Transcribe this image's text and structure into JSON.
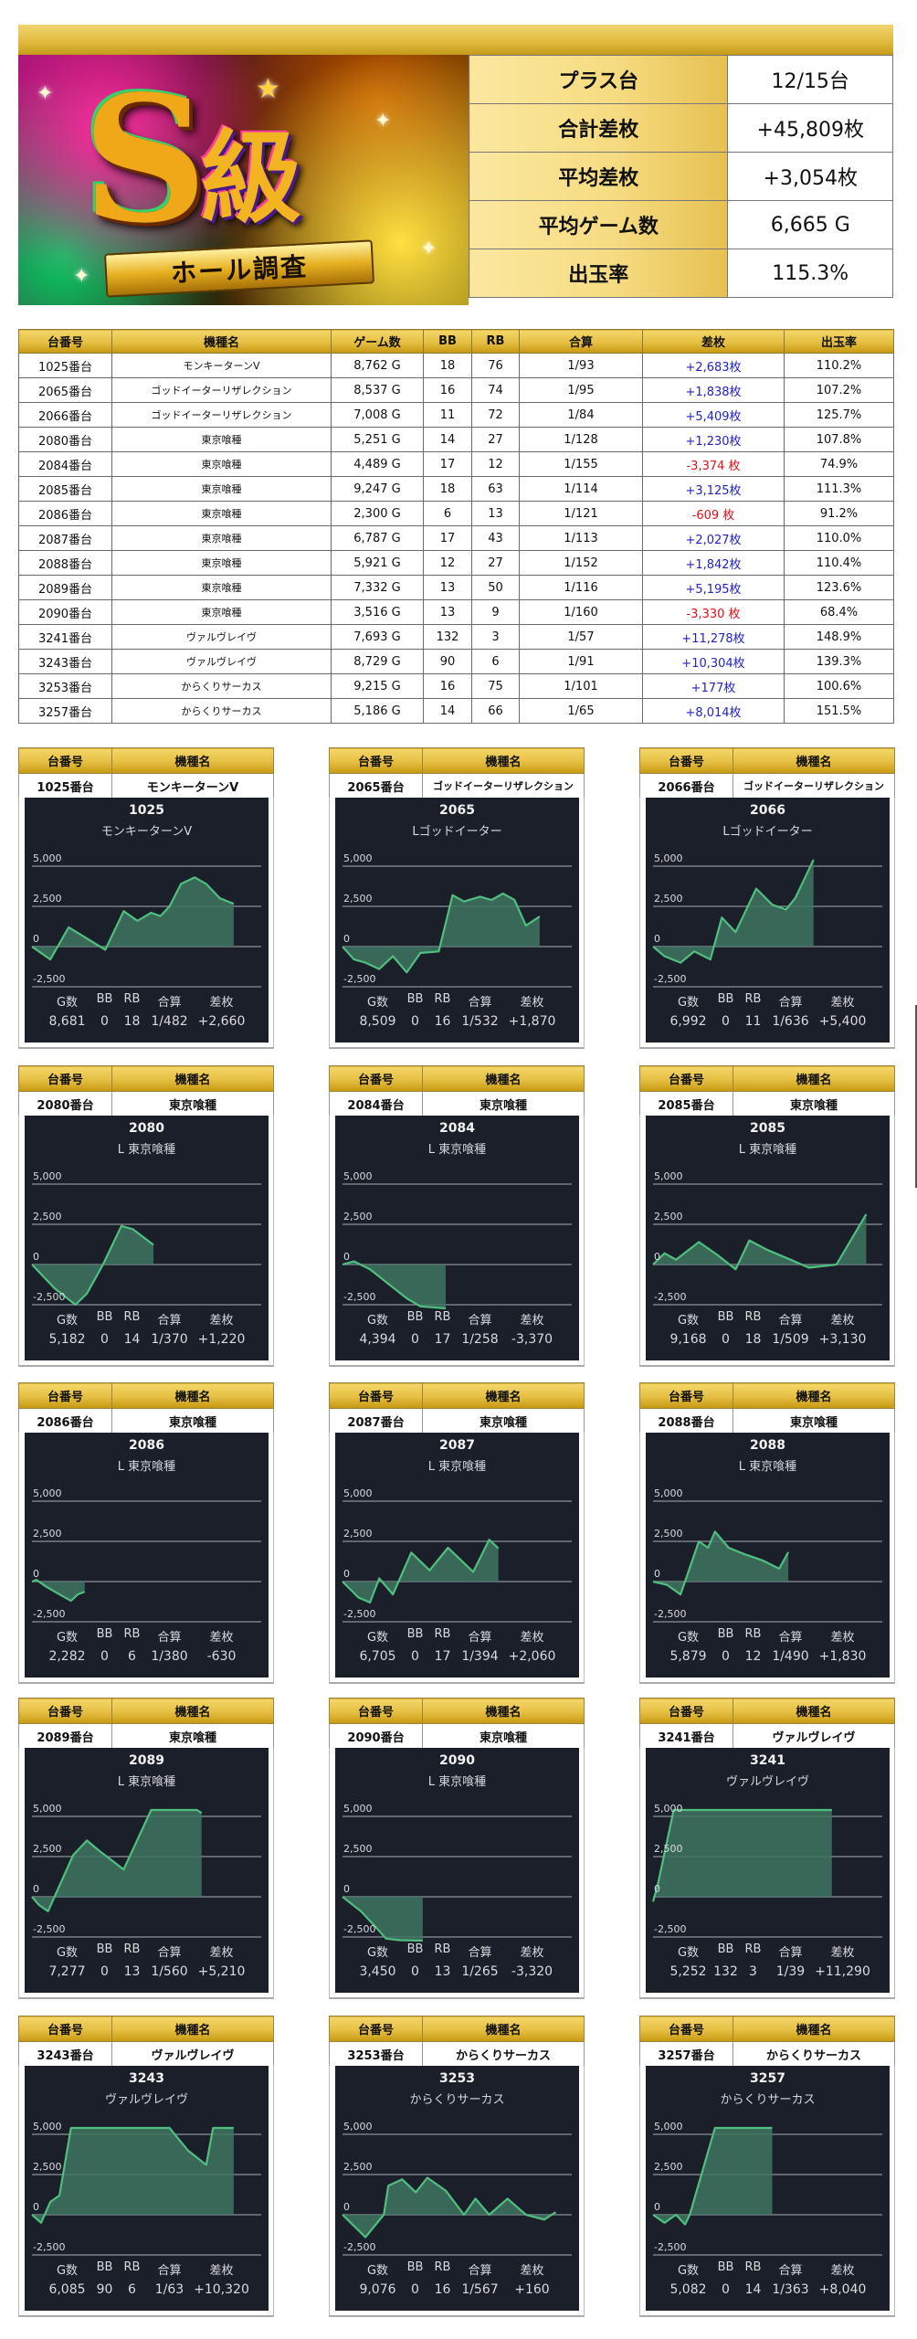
{
  "banner": {
    "title_main": "S級",
    "title_sub": "ホール調査",
    "summary": [
      {
        "label": "プラス台",
        "value": "12/15台"
      },
      {
        "label": "合計差枚",
        "value": "+45,809枚"
      },
      {
        "label": "平均差枚",
        "value": "+3,054枚"
      },
      {
        "label": "平均ゲーム数",
        "value": "6,665 G"
      },
      {
        "label": "出玉率",
        "value": "115.3%"
      }
    ]
  },
  "table": {
    "headers": [
      "台番号",
      "機種名",
      "ゲーム数",
      "BB",
      "RB",
      "合算",
      "差枚",
      "出玉率"
    ],
    "rows": [
      [
        "1025番台",
        "モンキーターンV",
        "8,762 G",
        "18",
        "76",
        "1/93",
        "+2,683枚",
        "110.2%"
      ],
      [
        "2065番台",
        "ゴッドイーターリザレクション",
        "8,537 G",
        "16",
        "74",
        "1/95",
        "+1,838枚",
        "107.2%"
      ],
      [
        "2066番台",
        "ゴッドイーターリザレクション",
        "7,008 G",
        "11",
        "72",
        "1/84",
        "+5,409枚",
        "125.7%"
      ],
      [
        "2080番台",
        "東京喰種",
        "5,251 G",
        "14",
        "27",
        "1/128",
        "+1,230枚",
        "107.8%"
      ],
      [
        "2084番台",
        "東京喰種",
        "4,489 G",
        "17",
        "12",
        "1/155",
        "-3,374 枚",
        "74.9%"
      ],
      [
        "2085番台",
        "東京喰種",
        "9,247 G",
        "18",
        "63",
        "1/114",
        "+3,125枚",
        "111.3%"
      ],
      [
        "2086番台",
        "東京喰種",
        "2,300 G",
        "6",
        "13",
        "1/121",
        "-609 枚",
        "91.2%"
      ],
      [
        "2087番台",
        "東京喰種",
        "6,787 G",
        "17",
        "43",
        "1/113",
        "+2,027枚",
        "110.0%"
      ],
      [
        "2088番台",
        "東京喰種",
        "5,921 G",
        "12",
        "27",
        "1/152",
        "+1,842枚",
        "110.4%"
      ],
      [
        "2089番台",
        "東京喰種",
        "7,332 G",
        "13",
        "50",
        "1/116",
        "+5,195枚",
        "123.6%"
      ],
      [
        "2090番台",
        "東京喰種",
        "3,516 G",
        "13",
        "9",
        "1/160",
        "-3,330 枚",
        "68.4%"
      ],
      [
        "3241番台",
        "ヴァルヴレイヴ",
        "7,693 G",
        "132",
        "3",
        "1/57",
        "+11,278枚",
        "148.9%"
      ],
      [
        "3243番台",
        "ヴァルヴレイヴ",
        "8,729 G",
        "90",
        "6",
        "1/91",
        "+10,304枚",
        "139.3%"
      ],
      [
        "3253番台",
        "からくりサーカス",
        "9,215 G",
        "16",
        "75",
        "1/101",
        "+177枚",
        "100.6%"
      ],
      [
        "3257番台",
        "からくりサーカス",
        "5,186 G",
        "14",
        "66",
        "1/65",
        "+8,014枚",
        "151.5%"
      ]
    ],
    "colors": {
      "plus": "#2222cc",
      "minus": "#e0101a"
    }
  },
  "card_labels": {
    "unit_header": "台番号",
    "model_header": "機種名",
    "stat_headers": [
      "G数",
      "BB",
      "RB",
      "合算",
      "差枚"
    ]
  },
  "chart_axis": {
    "ticks": [
      "5,000",
      "2,500",
      "0",
      "-2,500"
    ],
    "ymin": -2500,
    "ymax": 5000
  },
  "colors": {
    "panel_bg": "#1b1f2a",
    "line": "#4fbf80",
    "fill": "#3f7560",
    "grid": "#8d9096",
    "gold": "#e5bf42"
  },
  "chart_data": [
    {
      "type": "area",
      "title": "1025",
      "subtitle": "モンキーターンV",
      "unit": "1025番台",
      "model": "モンキーターンV",
      "stats": [
        "8,681",
        "0",
        "18",
        "1/482",
        "+2,660"
      ],
      "ylim": [
        -2500,
        5000
      ],
      "yticks": [
        5000,
        2500,
        0,
        -2500
      ],
      "xmax_frac": 0.88,
      "points": [
        [
          0,
          0
        ],
        [
          0.03,
          -300
        ],
        [
          0.08,
          -800
        ],
        [
          0.16,
          1200
        ],
        [
          0.24,
          500
        ],
        [
          0.32,
          -200
        ],
        [
          0.4,
          2200
        ],
        [
          0.46,
          1600
        ],
        [
          0.52,
          2100
        ],
        [
          0.56,
          1900
        ],
        [
          0.6,
          2500
        ],
        [
          0.65,
          3900
        ],
        [
          0.71,
          4300
        ],
        [
          0.76,
          3900
        ],
        [
          0.82,
          3000
        ],
        [
          0.88,
          2660
        ]
      ]
    },
    {
      "type": "area",
      "title": "2065",
      "subtitle": "Lゴッドイーター",
      "unit": "2065番台",
      "model": "ゴッドイーターリザレクション",
      "stats": [
        "8,509",
        "0",
        "16",
        "1/532",
        "+1,870"
      ],
      "ylim": [
        -2500,
        5000
      ],
      "yticks": [
        5000,
        2500,
        0,
        -2500
      ],
      "xmax_frac": 0.86,
      "points": [
        [
          0,
          0
        ],
        [
          0.05,
          -800
        ],
        [
          0.1,
          -1000
        ],
        [
          0.16,
          -1400
        ],
        [
          0.22,
          -600
        ],
        [
          0.28,
          -1600
        ],
        [
          0.34,
          -400
        ],
        [
          0.42,
          -300
        ],
        [
          0.48,
          3200
        ],
        [
          0.53,
          2800
        ],
        [
          0.6,
          3100
        ],
        [
          0.65,
          2900
        ],
        [
          0.7,
          3300
        ],
        [
          0.75,
          2900
        ],
        [
          0.8,
          1300
        ],
        [
          0.86,
          1870
        ]
      ]
    },
    {
      "type": "area",
      "title": "2066",
      "subtitle": "Lゴッドイーター",
      "unit": "2066番台",
      "model": "ゴッドイーターリザレクション",
      "stats": [
        "6,992",
        "0",
        "11",
        "1/636",
        "+5,400"
      ],
      "ylim": [
        -2500,
        5000
      ],
      "yticks": [
        5000,
        2500,
        0,
        -2500
      ],
      "xmax_frac": 0.7,
      "points": [
        [
          0,
          0
        ],
        [
          0.05,
          -600
        ],
        [
          0.12,
          -1000
        ],
        [
          0.18,
          -300
        ],
        [
          0.25,
          -800
        ],
        [
          0.3,
          1800
        ],
        [
          0.36,
          900
        ],
        [
          0.45,
          3600
        ],
        [
          0.52,
          2600
        ],
        [
          0.58,
          2300
        ],
        [
          0.62,
          3000
        ],
        [
          0.7,
          5400
        ]
      ]
    },
    {
      "type": "area",
      "title": "2080",
      "subtitle": "L 東京喰種",
      "unit": "2080番台",
      "model": "東京喰種",
      "stats": [
        "5,182",
        "0",
        "14",
        "1/370",
        "+1,220"
      ],
      "ylim": [
        -2500,
        5000
      ],
      "yticks": [
        5000,
        2500,
        0,
        -2500
      ],
      "xmax_frac": 0.53,
      "points": [
        [
          0,
          0
        ],
        [
          0.1,
          -1500
        ],
        [
          0.19,
          -2500
        ],
        [
          0.24,
          -1800
        ],
        [
          0.31,
          0
        ],
        [
          0.39,
          2400
        ],
        [
          0.44,
          2200
        ],
        [
          0.53,
          1220
        ]
      ]
    },
    {
      "type": "area",
      "title": "2084",
      "subtitle": "L 東京喰種",
      "unit": "2084番台",
      "model": "東京喰種",
      "stats": [
        "4,394",
        "0",
        "17",
        "1/258",
        "-3,370"
      ],
      "ylim": [
        -2500,
        5000
      ],
      "yticks": [
        5000,
        2500,
        0,
        -2500
      ],
      "xmax_frac": 0.45,
      "points": [
        [
          0,
          0
        ],
        [
          0.05,
          200
        ],
        [
          0.12,
          -300
        ],
        [
          0.2,
          -1200
        ],
        [
          0.28,
          -2100
        ],
        [
          0.34,
          -2600
        ],
        [
          0.45,
          -3370
        ]
      ]
    },
    {
      "type": "area",
      "title": "2085",
      "subtitle": "L 東京喰種",
      "unit": "2085番台",
      "model": "東京喰種",
      "stats": [
        "9,168",
        "0",
        "18",
        "1/509",
        "+3,130"
      ],
      "ylim": [
        -2500,
        5000
      ],
      "yticks": [
        5000,
        2500,
        0,
        -2500
      ],
      "xmax_frac": 0.93,
      "points": [
        [
          0,
          0
        ],
        [
          0.05,
          700
        ],
        [
          0.1,
          300
        ],
        [
          0.2,
          1400
        ],
        [
          0.28,
          600
        ],
        [
          0.36,
          -300
        ],
        [
          0.42,
          1500
        ],
        [
          0.5,
          900
        ],
        [
          0.6,
          300
        ],
        [
          0.68,
          -200
        ],
        [
          0.8,
          0
        ],
        [
          0.93,
          3130
        ]
      ]
    },
    {
      "type": "area",
      "title": "2086",
      "subtitle": "L 東京喰種",
      "unit": "2086番台",
      "model": "東京喰種",
      "stats": [
        "2,282",
        "0",
        "6",
        "1/380",
        "-630"
      ],
      "ylim": [
        -2500,
        5000
      ],
      "yticks": [
        5000,
        2500,
        0,
        -2500
      ],
      "xmax_frac": 0.23,
      "points": [
        [
          0,
          0
        ],
        [
          0.02,
          100
        ],
        [
          0.06,
          -300
        ],
        [
          0.12,
          -800
        ],
        [
          0.17,
          -1200
        ],
        [
          0.2,
          -800
        ],
        [
          0.23,
          -630
        ]
      ]
    },
    {
      "type": "area",
      "title": "2087",
      "subtitle": "L 東京喰種",
      "unit": "2087番台",
      "model": "東京喰種",
      "stats": [
        "6,705",
        "0",
        "17",
        "1/394",
        "+2,060"
      ],
      "ylim": [
        -2500,
        5000
      ],
      "yticks": [
        5000,
        2500,
        0,
        -2500
      ],
      "xmax_frac": 0.68,
      "points": [
        [
          0,
          0
        ],
        [
          0.07,
          -1000
        ],
        [
          0.12,
          -1300
        ],
        [
          0.16,
          200
        ],
        [
          0.22,
          -800
        ],
        [
          0.3,
          1800
        ],
        [
          0.38,
          700
        ],
        [
          0.46,
          2100
        ],
        [
          0.57,
          600
        ],
        [
          0.64,
          2600
        ],
        [
          0.68,
          2060
        ]
      ]
    },
    {
      "type": "area",
      "title": "2088",
      "subtitle": "L 東京喰種",
      "unit": "2088番台",
      "model": "東京喰種",
      "stats": [
        "5,879",
        "0",
        "12",
        "1/490",
        "+1,830"
      ],
      "ylim": [
        -2500,
        5000
      ],
      "yticks": [
        5000,
        2500,
        0,
        -2500
      ],
      "xmax_frac": 0.59,
      "points": [
        [
          0,
          0
        ],
        [
          0.06,
          -200
        ],
        [
          0.12,
          -800
        ],
        [
          0.2,
          2500
        ],
        [
          0.24,
          2100
        ],
        [
          0.27,
          3100
        ],
        [
          0.33,
          2100
        ],
        [
          0.4,
          1700
        ],
        [
          0.48,
          1300
        ],
        [
          0.55,
          800
        ],
        [
          0.59,
          1830
        ]
      ]
    },
    {
      "type": "area",
      "title": "2089",
      "subtitle": "L 東京喰種",
      "unit": "2089番台",
      "model": "東京喰種",
      "stats": [
        "7,277",
        "0",
        "13",
        "1/560",
        "+5,210"
      ],
      "ylim": [
        -2500,
        5000
      ],
      "yticks": [
        5000,
        2500,
        0,
        -2500
      ],
      "xmax_frac": 0.74,
      "points": [
        [
          0,
          0
        ],
        [
          0.03,
          -500
        ],
        [
          0.07,
          -900
        ],
        [
          0.18,
          2600
        ],
        [
          0.24,
          3500
        ],
        [
          0.29,
          2900
        ],
        [
          0.4,
          1700
        ],
        [
          0.52,
          5400
        ],
        [
          0.72,
          5400
        ],
        [
          0.74,
          5210
        ]
      ]
    },
    {
      "type": "area",
      "title": "2090",
      "subtitle": "L 東京喰種",
      "unit": "2090番台",
      "model": "東京喰種",
      "stats": [
        "3,450",
        "0",
        "13",
        "1/265",
        "-3,320"
      ],
      "ylim": [
        -2500,
        5000
      ],
      "yticks": [
        5000,
        2500,
        0,
        -2500
      ],
      "xmax_frac": 0.35,
      "points": [
        [
          0,
          0
        ],
        [
          0.08,
          -900
        ],
        [
          0.14,
          -1800
        ],
        [
          0.19,
          -2600
        ],
        [
          0.25,
          -2700
        ],
        [
          0.35,
          -3320
        ]
      ]
    },
    {
      "type": "area",
      "title": "3241",
      "subtitle": "ヴァルヴレイヴ",
      "unit": "3241番台",
      "model": "ヴァルヴレイヴ",
      "stats": [
        "5,252",
        "132",
        "3",
        "1/39",
        "+11,290"
      ],
      "ylim": [
        -2500,
        5000
      ],
      "yticks": [
        5000,
        2500,
        0,
        -2500
      ],
      "xmax_frac": 0.78,
      "points": [
        [
          0,
          -300
        ],
        [
          0.02,
          700
        ],
        [
          0.09,
          5400
        ],
        [
          0.78,
          5400
        ]
      ]
    },
    {
      "type": "area",
      "title": "3243",
      "subtitle": "ヴァルヴレイヴ",
      "unit": "3243番台",
      "model": "ヴァルヴレイヴ",
      "stats": [
        "6,085",
        "90",
        "6",
        "1/63",
        "+10,320"
      ],
      "ylim": [
        -2500,
        5000
      ],
      "yticks": [
        5000,
        2500,
        0,
        -2500
      ],
      "xmax_frac": 0.88,
      "points": [
        [
          0,
          0
        ],
        [
          0.04,
          -500
        ],
        [
          0.08,
          800
        ],
        [
          0.12,
          1200
        ],
        [
          0.17,
          5400
        ],
        [
          0.6,
          5400
        ],
        [
          0.68,
          4000
        ],
        [
          0.76,
          3100
        ],
        [
          0.79,
          5400
        ],
        [
          0.88,
          5400
        ]
      ]
    },
    {
      "type": "area",
      "title": "3253",
      "subtitle": "からくりサーカス",
      "unit": "3253番台",
      "model": "からくりサーカス",
      "stats": [
        "9,076",
        "0",
        "16",
        "1/567",
        "+160"
      ],
      "ylim": [
        -2500,
        5000
      ],
      "yticks": [
        5000,
        2500,
        0,
        -2500
      ],
      "xmax_frac": 0.93,
      "points": [
        [
          0,
          0
        ],
        [
          0.1,
          -1400
        ],
        [
          0.18,
          0
        ],
        [
          0.2,
          1800
        ],
        [
          0.26,
          2200
        ],
        [
          0.32,
          1400
        ],
        [
          0.37,
          2300
        ],
        [
          0.45,
          1500
        ],
        [
          0.53,
          0
        ],
        [
          0.58,
          1000
        ],
        [
          0.64,
          0
        ],
        [
          0.72,
          1000
        ],
        [
          0.8,
          0
        ],
        [
          0.88,
          -300
        ],
        [
          0.93,
          160
        ]
      ]
    },
    {
      "type": "area",
      "title": "3257",
      "subtitle": "からくりサーカス",
      "unit": "3257番台",
      "model": "からくりサーカス",
      "stats": [
        "5,082",
        "0",
        "14",
        "1/363",
        "+8,040"
      ],
      "ylim": [
        -2500,
        5000
      ],
      "yticks": [
        5000,
        2500,
        0,
        -2500
      ],
      "xmax_frac": 0.52,
      "points": [
        [
          0,
          0
        ],
        [
          0.05,
          -500
        ],
        [
          0.1,
          0
        ],
        [
          0.14,
          -600
        ],
        [
          0.16,
          0
        ],
        [
          0.27,
          5400
        ],
        [
          0.52,
          5400
        ]
      ]
    }
  ]
}
